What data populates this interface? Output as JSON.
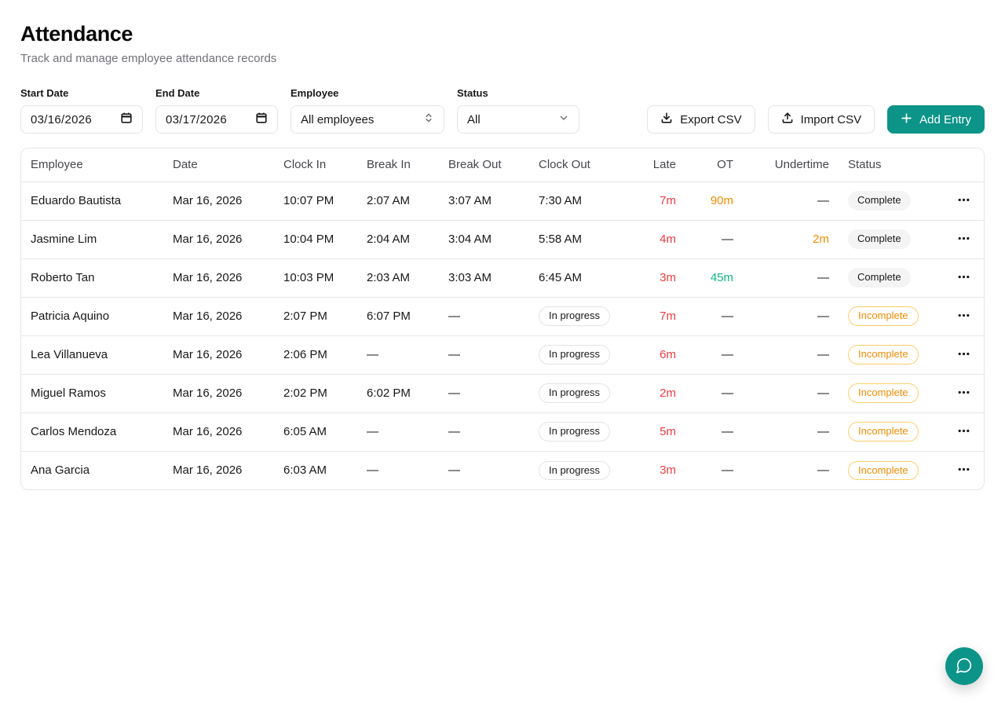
{
  "page": {
    "title": "Attendance",
    "subtitle": "Track and manage employee attendance records"
  },
  "filters": {
    "start_date": {
      "label": "Start Date",
      "value": "03/16/2026"
    },
    "end_date": {
      "label": "End Date",
      "value": "03/17/2026"
    },
    "employee": {
      "label": "Employee",
      "value": "All employees"
    },
    "status": {
      "label": "Status",
      "value": "All"
    }
  },
  "actions": {
    "export_csv": "Export CSV",
    "import_csv": "Import CSV",
    "add_entry": "Add Entry"
  },
  "icons": {
    "export_csv": "download-icon",
    "import_csv": "upload-icon",
    "add_entry": "plus-icon",
    "date_field": "calendar-icon",
    "employee_select": "chevrons-up-down-icon",
    "status_select": "chevron-down-icon",
    "row_menu": "ellipsis-icon",
    "chat": "chat-bubble-icon"
  },
  "colors": {
    "accent_teal": "#0d9488",
    "late_red": "#ef3b41",
    "warn_orange": "#f08c00",
    "ot_green": "#10b981"
  },
  "table": {
    "columns": [
      "Employee",
      "Date",
      "Clock In",
      "Break In",
      "Break Out",
      "Clock Out",
      "Late",
      "OT",
      "Undertime",
      "Status"
    ],
    "in_progress_label": "In progress",
    "rows": [
      {
        "employee": "Eduardo Bautista",
        "date": "Mar 16, 2026",
        "clock_in": "10:07 PM",
        "break_in": "2:07 AM",
        "break_out": "3:07 AM",
        "clock_out": {
          "text": "7:30 AM",
          "in_progress": false
        },
        "late": {
          "text": "7m",
          "color": "red"
        },
        "ot": {
          "text": "90m",
          "color": "orange"
        },
        "undertime": {
          "text": "—",
          "color": "none"
        },
        "status": {
          "text": "Complete",
          "variant": "complete"
        }
      },
      {
        "employee": "Jasmine Lim",
        "date": "Mar 16, 2026",
        "clock_in": "10:04 PM",
        "break_in": "2:04 AM",
        "break_out": "3:04 AM",
        "clock_out": {
          "text": "5:58 AM",
          "in_progress": false
        },
        "late": {
          "text": "4m",
          "color": "red"
        },
        "ot": {
          "text": "—",
          "color": "none"
        },
        "undertime": {
          "text": "2m",
          "color": "orange"
        },
        "status": {
          "text": "Complete",
          "variant": "complete"
        }
      },
      {
        "employee": "Roberto Tan",
        "date": "Mar 16, 2026",
        "clock_in": "10:03 PM",
        "break_in": "2:03 AM",
        "break_out": "3:03 AM",
        "clock_out": {
          "text": "6:45 AM",
          "in_progress": false
        },
        "late": {
          "text": "3m",
          "color": "red"
        },
        "ot": {
          "text": "45m",
          "color": "green"
        },
        "undertime": {
          "text": "—",
          "color": "none"
        },
        "status": {
          "text": "Complete",
          "variant": "complete"
        }
      },
      {
        "employee": "Patricia Aquino",
        "date": "Mar 16, 2026",
        "clock_in": "2:07 PM",
        "break_in": "6:07 PM",
        "break_out": "—",
        "clock_out": {
          "text": "In progress",
          "in_progress": true
        },
        "late": {
          "text": "7m",
          "color": "red"
        },
        "ot": {
          "text": "—",
          "color": "none"
        },
        "undertime": {
          "text": "—",
          "color": "none"
        },
        "status": {
          "text": "Incomplete",
          "variant": "incomplete"
        }
      },
      {
        "employee": "Lea Villanueva",
        "date": "Mar 16, 2026",
        "clock_in": "2:06 PM",
        "break_in": "—",
        "break_out": "—",
        "clock_out": {
          "text": "In progress",
          "in_progress": true
        },
        "late": {
          "text": "6m",
          "color": "red"
        },
        "ot": {
          "text": "—",
          "color": "none"
        },
        "undertime": {
          "text": "—",
          "color": "none"
        },
        "status": {
          "text": "Incomplete",
          "variant": "incomplete"
        }
      },
      {
        "employee": "Miguel Ramos",
        "date": "Mar 16, 2026",
        "clock_in": "2:02 PM",
        "break_in": "6:02 PM",
        "break_out": "—",
        "clock_out": {
          "text": "In progress",
          "in_progress": true
        },
        "late": {
          "text": "2m",
          "color": "red"
        },
        "ot": {
          "text": "—",
          "color": "none"
        },
        "undertime": {
          "text": "—",
          "color": "none"
        },
        "status": {
          "text": "Incomplete",
          "variant": "incomplete"
        }
      },
      {
        "employee": "Carlos Mendoza",
        "date": "Mar 16, 2026",
        "clock_in": "6:05 AM",
        "break_in": "—",
        "break_out": "—",
        "clock_out": {
          "text": "In progress",
          "in_progress": true
        },
        "late": {
          "text": "5m",
          "color": "red"
        },
        "ot": {
          "text": "—",
          "color": "none"
        },
        "undertime": {
          "text": "—",
          "color": "none"
        },
        "status": {
          "text": "Incomplete",
          "variant": "incomplete"
        }
      },
      {
        "employee": "Ana Garcia",
        "date": "Mar 16, 2026",
        "clock_in": "6:03 AM",
        "break_in": "—",
        "break_out": "—",
        "clock_out": {
          "text": "In progress",
          "in_progress": true
        },
        "late": {
          "text": "3m",
          "color": "red"
        },
        "ot": {
          "text": "—",
          "color": "none"
        },
        "undertime": {
          "text": "—",
          "color": "none"
        },
        "status": {
          "text": "Incomplete",
          "variant": "incomplete"
        }
      }
    ]
  }
}
